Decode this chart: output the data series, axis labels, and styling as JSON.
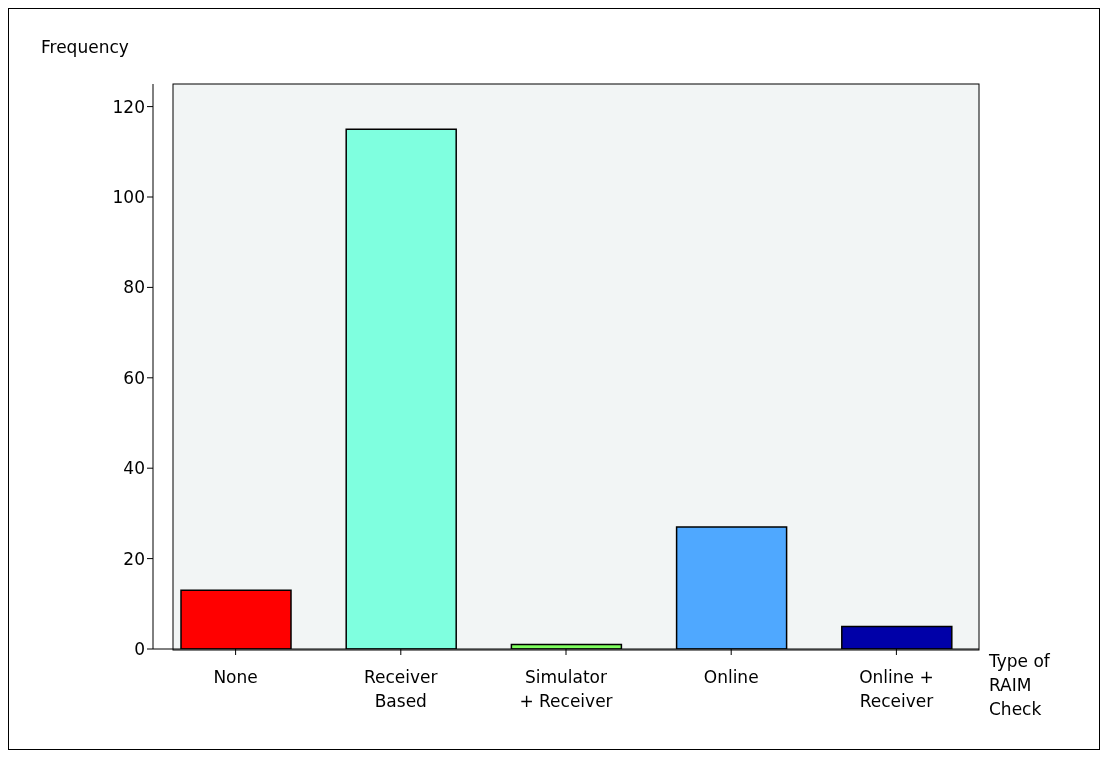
{
  "chart_data": {
    "type": "bar",
    "xlabel": "Type of RAIM Check",
    "ylabel": "Frequency",
    "categories": [
      "None",
      "Receiver Based",
      "Simulator + Receiver",
      "Online",
      "Online + Receiver"
    ],
    "values": [
      13,
      115,
      1,
      27,
      5
    ],
    "colors": [
      "#ff0000",
      "#7fffdf",
      "#7fff5f",
      "#4fa8ff",
      "#0000a8"
    ],
    "ylim": [
      0,
      125
    ],
    "yticks": [
      0,
      20,
      40,
      60,
      80,
      100,
      120
    ],
    "grid": false
  }
}
